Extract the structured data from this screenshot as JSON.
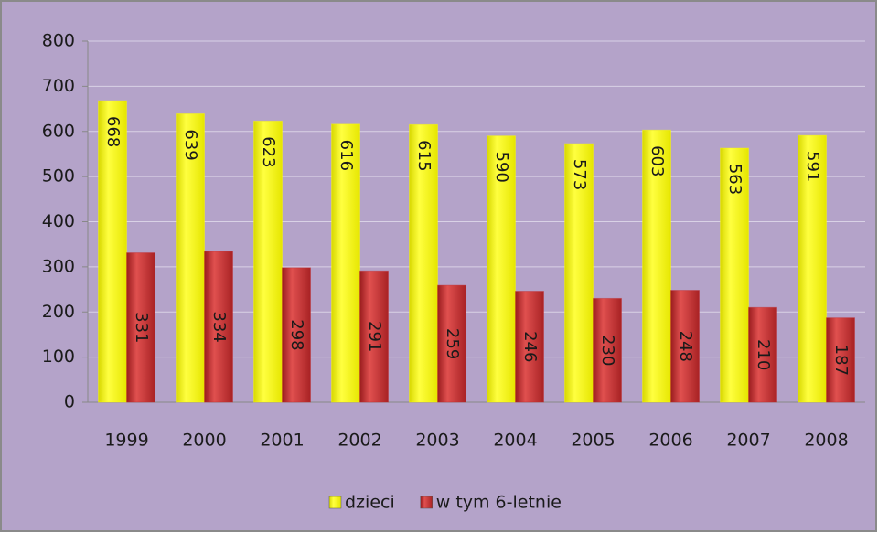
{
  "chart_data": {
    "type": "bar",
    "categories": [
      "1999",
      "2000",
      "2001",
      "2002",
      "2003",
      "2004",
      "2005",
      "2006",
      "2007",
      "2008"
    ],
    "series": [
      {
        "name": "dzieci",
        "color": "#ffff00",
        "values": [
          668,
          639,
          623,
          616,
          615,
          590,
          573,
          603,
          563,
          591
        ]
      },
      {
        "name": "w tym 6-letnie",
        "color": "#c0282a",
        "values": [
          331,
          334,
          298,
          291,
          259,
          246,
          230,
          248,
          210,
          187
        ]
      }
    ],
    "ylim": [
      0,
      800
    ],
    "yticks": [
      0,
      100,
      200,
      300,
      400,
      500,
      600,
      700,
      800
    ],
    "grid": true,
    "legend": "bottom"
  }
}
